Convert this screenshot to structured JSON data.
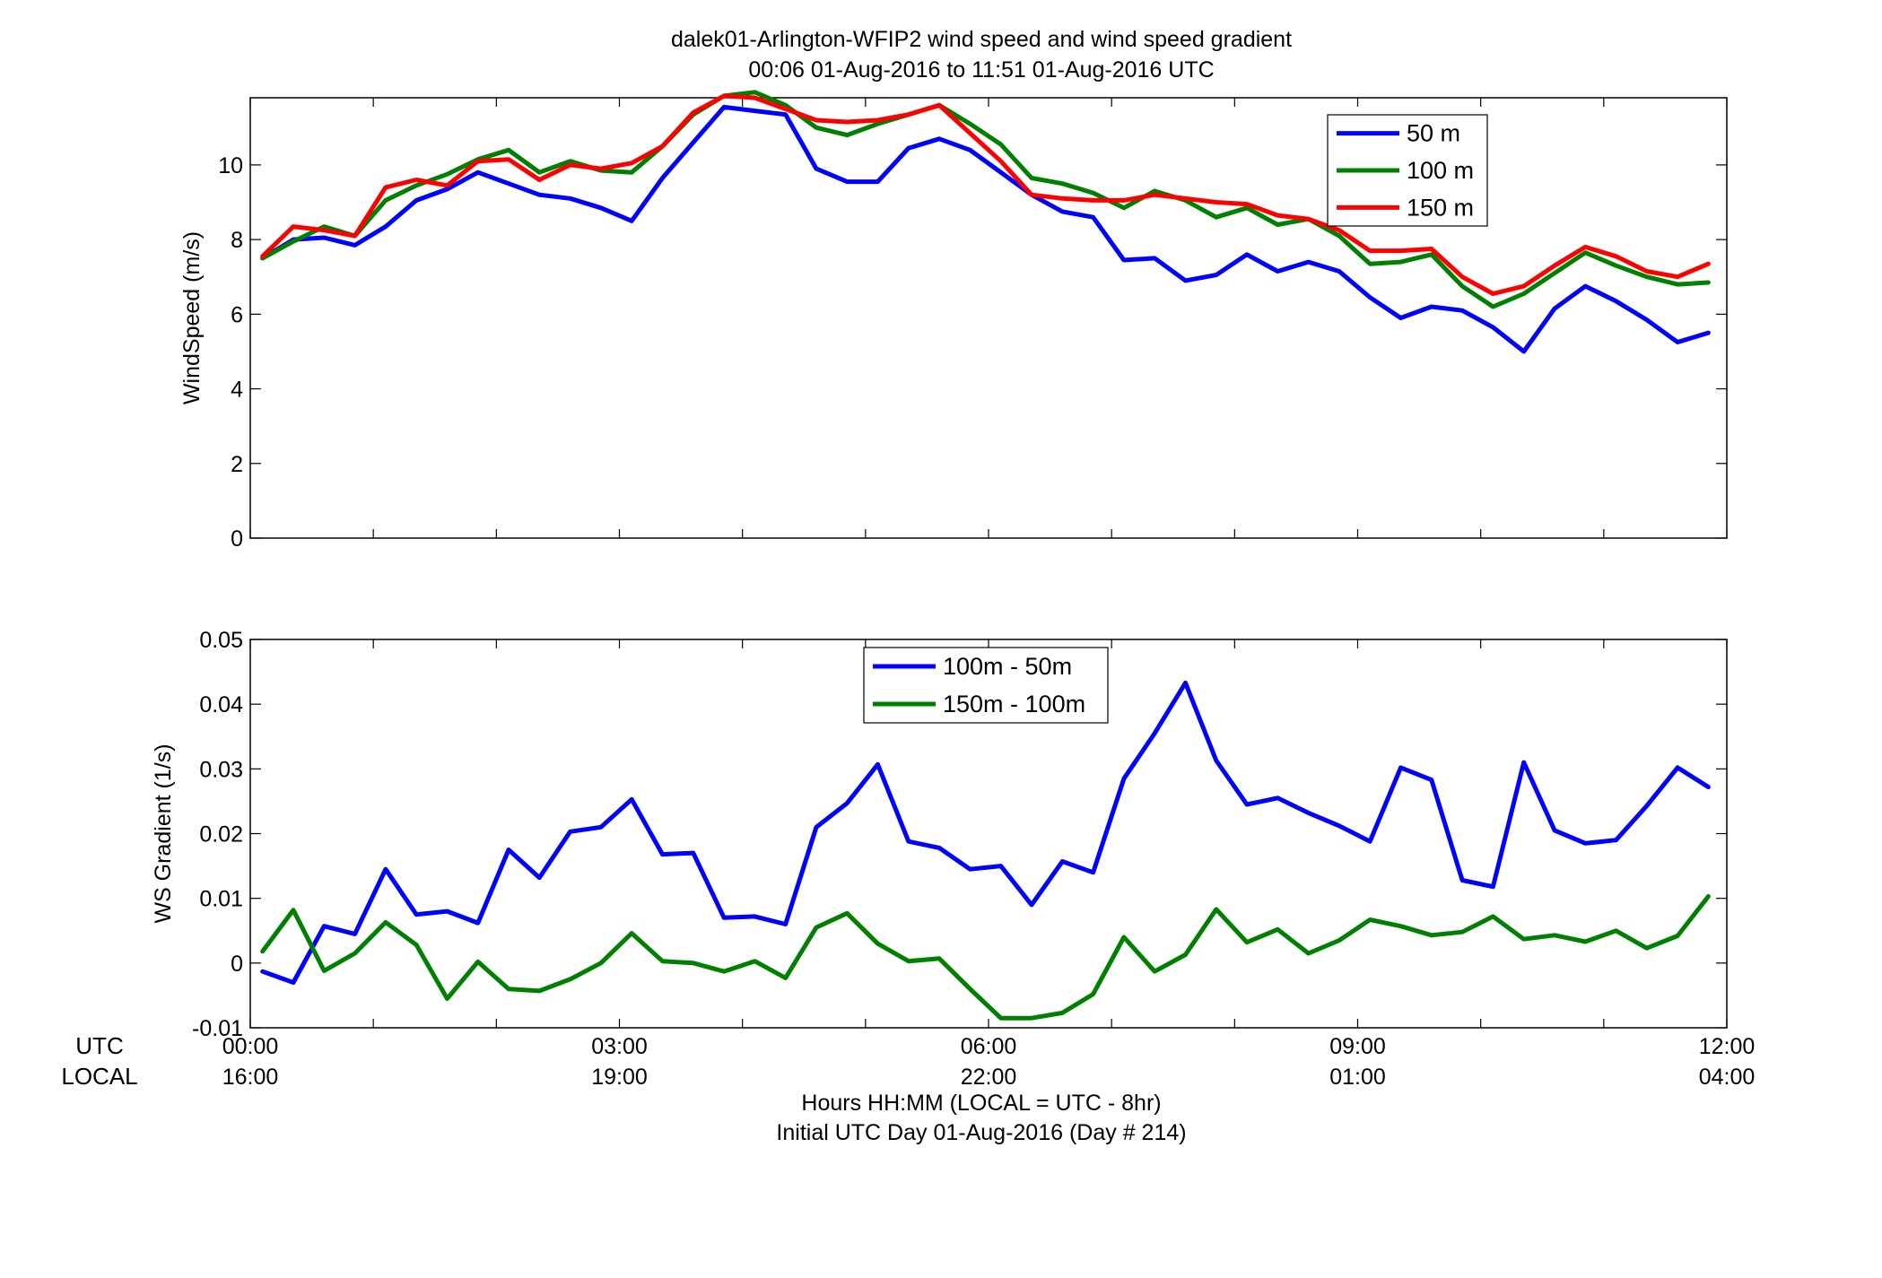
{
  "figure": {
    "title_line1": "dalek01-Arlington-WFIP2  wind speed and wind speed gradient",
    "title_line2": "00:06 01-Aug-2016 to 11:51 01-Aug-2016  UTC",
    "row_label_utc": "UTC",
    "row_label_local": "LOCAL",
    "xlabel_line1": "Hours HH:MM  (LOCAL = UTC - 8hr)",
    "xlabel_line2": "Initial UTC Day 01-Aug-2016 (Day # 214)",
    "x_ticks_utc": [
      "00:00",
      "03:00",
      "06:00",
      "09:00",
      "12:00"
    ],
    "x_ticks_local": [
      "16:00",
      "19:00",
      "22:00",
      "01:00",
      "04:00"
    ]
  },
  "chart_data": [
    {
      "type": "line",
      "ylabel": "WindSpeed (m/s)",
      "xlim": [
        0,
        12
      ],
      "ylim": [
        0,
        11.8
      ],
      "y_ticks": [
        0,
        2,
        4,
        6,
        8,
        10
      ],
      "x_tick_values": [
        0,
        3,
        6,
        9,
        12
      ],
      "x_unit": "hours UTC",
      "grid": false,
      "legend_position": "top-right",
      "x": [
        0.1,
        0.35,
        0.6,
        0.85,
        1.1,
        1.35,
        1.6,
        1.85,
        2.1,
        2.35,
        2.6,
        2.85,
        3.1,
        3.35,
        3.6,
        3.85,
        4.1,
        4.35,
        4.6,
        4.85,
        5.1,
        5.35,
        5.6,
        5.85,
        6.1,
        6.35,
        6.6,
        6.85,
        7.1,
        7.35,
        7.6,
        7.85,
        8.1,
        8.35,
        8.6,
        8.85,
        9.1,
        9.35,
        9.6,
        9.85,
        10.1,
        10.35,
        10.6,
        10.85,
        11.1,
        11.35,
        11.6,
        11.85
      ],
      "series": [
        {
          "name": "50 m",
          "color": "#0000ff",
          "values": [
            7.5,
            8.0,
            8.05,
            7.85,
            8.35,
            9.05,
            9.35,
            9.8,
            9.5,
            9.2,
            9.1,
            8.85,
            8.5,
            9.65,
            10.6,
            11.55,
            11.45,
            11.35,
            9.9,
            9.55,
            9.55,
            10.45,
            10.7,
            10.4,
            9.8,
            9.2,
            8.75,
            8.6,
            7.45,
            7.5,
            6.9,
            7.05,
            7.6,
            7.15,
            7.4,
            7.15,
            6.45,
            5.9,
            6.2,
            6.1,
            5.65,
            5.0,
            6.15,
            6.75,
            6.35,
            5.85,
            5.25,
            5.5
          ]
        },
        {
          "name": "100 m",
          "color": "#008000",
          "values": [
            7.5,
            7.95,
            8.35,
            8.1,
            9.05,
            9.45,
            9.75,
            10.15,
            10.4,
            9.8,
            10.1,
            9.85,
            9.8,
            10.5,
            11.35,
            11.85,
            11.95,
            11.6,
            11.0,
            10.8,
            11.1,
            11.35,
            11.6,
            11.1,
            10.55,
            9.65,
            9.5,
            9.25,
            8.85,
            9.3,
            9.05,
            8.6,
            8.85,
            8.4,
            8.55,
            8.1,
            7.35,
            7.4,
            7.6,
            6.75,
            6.2,
            6.55,
            7.1,
            7.65,
            7.3,
            7.0,
            6.8,
            6.85
          ]
        },
        {
          "name": "150 m",
          "color": "#ff0000",
          "values": [
            7.55,
            8.35,
            8.25,
            8.1,
            9.4,
            9.6,
            9.45,
            10.1,
            10.15,
            9.6,
            10.0,
            9.9,
            10.05,
            10.5,
            11.4,
            11.85,
            11.8,
            11.5,
            11.2,
            11.15,
            11.2,
            11.35,
            11.6,
            10.85,
            10.1,
            9.2,
            9.1,
            9.05,
            9.05,
            9.2,
            9.1,
            9.0,
            8.95,
            8.65,
            8.55,
            8.25,
            7.7,
            7.7,
            7.75,
            7.0,
            6.55,
            6.75,
            7.3,
            7.8,
            7.55,
            7.15,
            7.0,
            7.35
          ]
        }
      ]
    },
    {
      "type": "line",
      "ylabel": "WS Gradient (1/s)",
      "xlim": [
        0,
        12
      ],
      "ylim": [
        -0.01,
        0.05
      ],
      "y_ticks": [
        -0.01,
        0,
        0.01,
        0.02,
        0.03,
        0.04,
        0.05
      ],
      "y_tick_labels": [
        "-0.01",
        "0",
        "0.01",
        "0.02",
        "0.03",
        "0.04",
        "0.05"
      ],
      "x_tick_values": [
        0,
        3,
        6,
        9,
        12
      ],
      "x_unit": "hours UTC",
      "grid": false,
      "legend_position": "top-center",
      "x": [
        0.1,
        0.35,
        0.6,
        0.85,
        1.1,
        1.35,
        1.6,
        1.85,
        2.1,
        2.35,
        2.6,
        2.85,
        3.1,
        3.35,
        3.6,
        3.85,
        4.1,
        4.35,
        4.6,
        4.85,
        5.1,
        5.35,
        5.6,
        5.85,
        6.1,
        6.35,
        6.6,
        6.85,
        7.1,
        7.35,
        7.6,
        7.85,
        8.1,
        8.35,
        8.6,
        8.85,
        9.1,
        9.35,
        9.6,
        9.85,
        10.1,
        10.35,
        10.6,
        10.85,
        11.1,
        11.35,
        11.6,
        11.85
      ],
      "series": [
        {
          "name": "100m - 50m",
          "color": "#0000ff",
          "values": [
            -0.0013,
            -0.003,
            0.0057,
            0.0045,
            0.0145,
            0.0075,
            0.008,
            0.0062,
            0.0175,
            0.0132,
            0.0203,
            0.021,
            0.0253,
            0.0168,
            0.017,
            0.007,
            0.0072,
            0.006,
            0.021,
            0.0247,
            0.0307,
            0.0188,
            0.0178,
            0.0145,
            0.015,
            0.009,
            0.0157,
            0.014,
            0.0285,
            0.0355,
            0.0433,
            0.0313,
            0.0245,
            0.0255,
            0.0232,
            0.0212,
            0.0188,
            0.0302,
            0.0283,
            0.0128,
            0.0118,
            0.031,
            0.0205,
            0.0185,
            0.019,
            0.0243,
            0.0302,
            0.0272
          ]
        },
        {
          "name": "150m - 100m",
          "color": "#008000",
          "values": [
            0.0018,
            0.0082,
            -0.0012,
            0.0015,
            0.0063,
            0.0028,
            -0.0055,
            0.0002,
            -0.004,
            -0.0043,
            -0.0025,
            0.0,
            0.0046,
            0.0003,
            0.0,
            -0.0013,
            0.0003,
            -0.0023,
            0.0055,
            0.0077,
            0.003,
            0.0003,
            0.0007,
            -0.004,
            -0.0085,
            -0.0085,
            -0.0077,
            -0.0048,
            0.004,
            -0.0013,
            0.0013,
            0.0083,
            0.0032,
            0.0052,
            0.0015,
            0.0035,
            0.0067,
            0.0057,
            0.0043,
            0.0048,
            0.0072,
            0.0037,
            0.0043,
            0.0033,
            0.005,
            0.0023,
            0.0042,
            0.0103
          ]
        }
      ]
    }
  ]
}
